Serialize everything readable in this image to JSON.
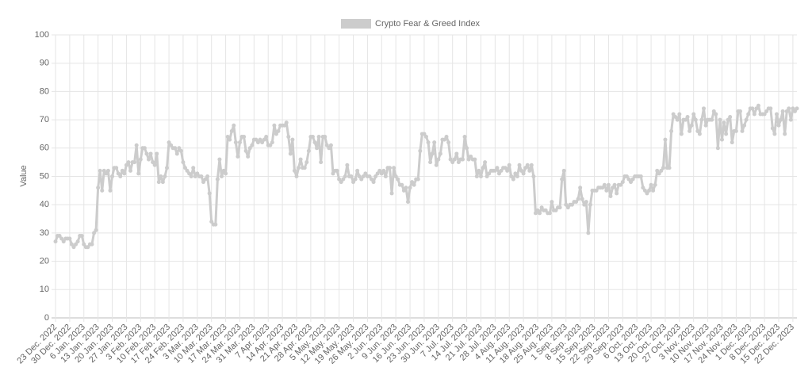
{
  "chart_data": {
    "type": "line",
    "ylabel": "Value",
    "ylim": [
      0,
      100
    ],
    "yticks": [
      0,
      10,
      20,
      30,
      40,
      50,
      60,
      70,
      80,
      90,
      100
    ],
    "grid": true,
    "legend": "top",
    "categories": [
      "23 Dec. 2022",
      null,
      null,
      null,
      null,
      null,
      null,
      "30 Dec. 2022",
      null,
      null,
      null,
      null,
      null,
      null,
      "6 Jan. 2023",
      null,
      null,
      null,
      null,
      null,
      null,
      "13 Jan. 2023",
      null,
      null,
      null,
      null,
      null,
      null,
      "20 Jan. 2023",
      null,
      null,
      null,
      null,
      null,
      null,
      "27 Jan. 2023",
      null,
      null,
      null,
      null,
      null,
      null,
      "3 Feb. 2023",
      null,
      null,
      null,
      null,
      null,
      null,
      "10 Feb. 2023",
      null,
      null,
      null,
      null,
      null,
      null,
      "17 Feb. 2023",
      null,
      null,
      null,
      null,
      null,
      null,
      "24 Feb. 2023",
      null,
      null,
      null,
      null,
      null,
      null,
      "3 Mar. 2023",
      null,
      null,
      null,
      null,
      null,
      null,
      "10 Mar. 2023",
      null,
      null,
      null,
      null,
      null,
      null,
      "17 Mar. 2023",
      null,
      null,
      null,
      null,
      null,
      null,
      "24 Mar. 2023",
      null,
      null,
      null,
      null,
      null,
      null,
      "31 Mar. 2023",
      null,
      null,
      null,
      null,
      null,
      null,
      "7 Apr. 2023",
      null,
      null,
      null,
      null,
      null,
      null,
      "14 Apr. 2023",
      null,
      null,
      null,
      null,
      null,
      null,
      "21 Apr. 2023",
      null,
      null,
      null,
      null,
      null,
      null,
      "28 Apr. 2023",
      null,
      null,
      null,
      null,
      null,
      null,
      "5 May. 2023",
      null,
      null,
      null,
      null,
      null,
      null,
      "12 May. 2023",
      null,
      null,
      null,
      null,
      null,
      null,
      "19 May. 2023",
      null,
      null,
      null,
      null,
      null,
      null,
      "26 May. 2023",
      null,
      null,
      null,
      null,
      null,
      null,
      "2 Jun. 2023",
      null,
      null,
      null,
      null,
      null,
      null,
      "9 Jun. 2023",
      null,
      null,
      null,
      null,
      null,
      null,
      "16 Jun. 2023",
      null,
      null,
      null,
      null,
      null,
      null,
      "23 Jun. 2023",
      null,
      null,
      null,
      null,
      null,
      null,
      "30 Jun. 2023",
      null,
      null,
      null,
      null,
      null,
      null,
      "7 Jul. 2023",
      null,
      null,
      null,
      null,
      null,
      null,
      "14 Jul. 2023",
      null,
      null,
      null,
      null,
      null,
      null,
      "21 Jul. 2023",
      null,
      null,
      null,
      null,
      null,
      null,
      "28 Jul. 2023",
      null,
      null,
      null,
      null,
      null,
      null,
      "4 Aug. 2023",
      null,
      null,
      null,
      null,
      null,
      null,
      "11 Aug. 2023",
      null,
      null,
      null,
      null,
      null,
      null,
      "18 Aug. 2023",
      null,
      null,
      null,
      null,
      null,
      null,
      "25 Aug. 2023",
      null,
      null,
      null,
      null,
      null,
      null,
      "1 Sep. 2023",
      null,
      null,
      null,
      null,
      null,
      null,
      "8 Sep. 2023",
      null,
      null,
      null,
      null,
      null,
      null,
      "15 Sep. 2023",
      null,
      null,
      null,
      null,
      null,
      null,
      "22 Sep. 2023",
      null,
      null,
      null,
      null,
      null,
      null,
      "29 Sep. 2023",
      null,
      null,
      null,
      null,
      null,
      null,
      "6 Oct. 2023",
      null,
      null,
      null,
      null,
      null,
      null,
      "13 Oct. 2023",
      null,
      null,
      null,
      null,
      null,
      null,
      "20 Oct. 2023",
      null,
      null,
      null,
      null,
      null,
      null,
      "27 Oct. 2023",
      null,
      null,
      null,
      null,
      null,
      null,
      "3 Nov. 2023",
      null,
      null,
      null,
      null,
      null,
      null,
      "10 Nov. 2023",
      null,
      null,
      null,
      null,
      null,
      null,
      "17 Nov. 2023",
      null,
      null,
      null,
      null,
      null,
      null,
      "24 Nov. 2023",
      null,
      null,
      null,
      null,
      null,
      null,
      "1 Dec. 2023",
      null,
      null,
      null,
      null,
      null,
      null,
      "8 Dec. 2023",
      null,
      null,
      null,
      null,
      null,
      null,
      "15 Dec. 2023",
      null,
      null,
      null,
      null,
      null,
      null,
      "22 Dec. 2023",
      null,
      null
    ],
    "series": [
      {
        "name": "Crypto Fear & Greed Index",
        "color": "#cccccc",
        "values": [
          27,
          29,
          29,
          28,
          27,
          28,
          28,
          28,
          26,
          25,
          26,
          27,
          29,
          29,
          26,
          25,
          25,
          26,
          26,
          30,
          31,
          46,
          52,
          45,
          52,
          51,
          52,
          45,
          50,
          53,
          53,
          51,
          50,
          52,
          51,
          54,
          55,
          52,
          55,
          55,
          61,
          51,
          56,
          60,
          60,
          58,
          56,
          58,
          55,
          54,
          58,
          48,
          50,
          48,
          50,
          53,
          62,
          61,
          60,
          60,
          58,
          60,
          59,
          55,
          53,
          52,
          51,
          50,
          53,
          50,
          51,
          50,
          50,
          48,
          49,
          50,
          44,
          34,
          33,
          33,
          49,
          56,
          50,
          52,
          51,
          64,
          63,
          66,
          68,
          62,
          57,
          62,
          64,
          64,
          59,
          57,
          60,
          61,
          63,
          63,
          62,
          63,
          62,
          63,
          64,
          61,
          61,
          62,
          68,
          65,
          66,
          68,
          68,
          68,
          69,
          64,
          58,
          63,
          52,
          50,
          53,
          56,
          53,
          53,
          55,
          59,
          64,
          64,
          62,
          60,
          64,
          55,
          64,
          64,
          61,
          60,
          61,
          51,
          52,
          52,
          49,
          48,
          49,
          50,
          54,
          50,
          50,
          48,
          49,
          52,
          50,
          49,
          50,
          51,
          50,
          50,
          49,
          48,
          50,
          51,
          52,
          51,
          52,
          50,
          53,
          53,
          44,
          53,
          50,
          49,
          47,
          47,
          45,
          46,
          41,
          46,
          48,
          47,
          49,
          49,
          59,
          65,
          65,
          64,
          62,
          55,
          58,
          62,
          54,
          56,
          58,
          63,
          63,
          64,
          62,
          56,
          55,
          56,
          58,
          55,
          56,
          56,
          64,
          60,
          56,
          57,
          56,
          56,
          50,
          52,
          50,
          53,
          55,
          50,
          51,
          52,
          52,
          52,
          53,
          51,
          52,
          53,
          53,
          52,
          54,
          50,
          49,
          51,
          50,
          54,
          52,
          51,
          53,
          54,
          52,
          54,
          50,
          37,
          38,
          37,
          39,
          38,
          38,
          37,
          37,
          41,
          38,
          38,
          39,
          39,
          49,
          52,
          40,
          39,
          40,
          40,
          41,
          41,
          42,
          46,
          42,
          40,
          41,
          30,
          40,
          45,
          45,
          45,
          46,
          46,
          46,
          47,
          45,
          47,
          43,
          46,
          47,
          44,
          47,
          47,
          48,
          50,
          50,
          49,
          48,
          49,
          50,
          50,
          50,
          50,
          46,
          45,
          44,
          45,
          47,
          45,
          47,
          52,
          51,
          52,
          53,
          63,
          53,
          53,
          66,
          72,
          71,
          70,
          72,
          65,
          70,
          70,
          71,
          66,
          68,
          72,
          70,
          66,
          65,
          70,
          74,
          68,
          70,
          70,
          70,
          73,
          72,
          60,
          70,
          63,
          69,
          65,
          70,
          71,
          62,
          66,
          66,
          73,
          73,
          66,
          68,
          70,
          72,
          74,
          74,
          72,
          74,
          75,
          72,
          72,
          72,
          73,
          74,
          74,
          67,
          65,
          72,
          68,
          70,
          73,
          65,
          73,
          74,
          70,
          74,
          73,
          74
        ]
      }
    ]
  }
}
